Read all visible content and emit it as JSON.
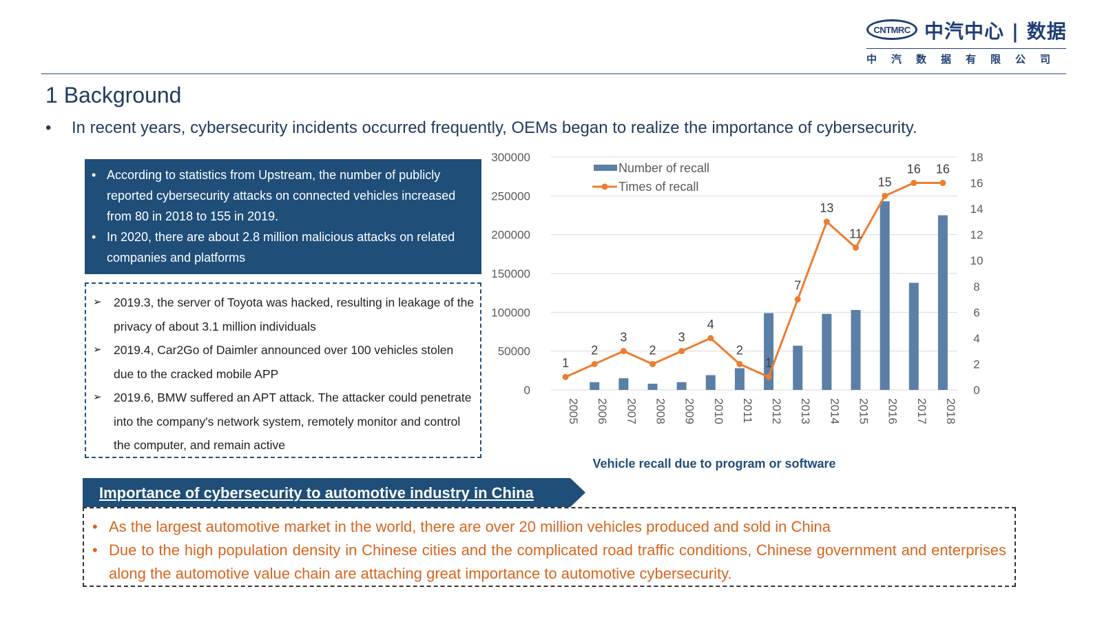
{
  "logo": {
    "badge_text": "CNTMRC",
    "name_cn": "中汽中心 | 数据",
    "subname_cn": "中汽数据有限公司"
  },
  "section_title": "1 Background",
  "intro_bullet": "In recent years, cybersecurity incidents occurred frequently, OEMs began to realize the importance of cybersecurity.",
  "stats_box": {
    "items": [
      "According to statistics from Upstream, the number of publicly reported cybersecurity attacks on connected vehicles increased from 80 in 2018 to 155 in 2019.",
      "In 2020, there are about 2.8 million malicious attacks on related companies and platforms"
    ]
  },
  "events_box": {
    "items": [
      "2019.3, the server of Toyota was hacked, resulting in leakage of the privacy of about 3.1 million individuals",
      "2019.4, Car2Go of Daimler announced over 100 vehicles stolen due to the cracked mobile APP",
      "2019.6, BMW suffered an APT attack. The attacker could penetrate into the company's network system, remotely monitor and control the computer, and remain active"
    ]
  },
  "chart_data": {
    "type": "bar",
    "title": "Vehicle recall due to program or software",
    "categories": [
      "2005",
      "2006",
      "2007",
      "2008",
      "2009",
      "2010",
      "2011",
      "2012",
      "2013",
      "2014",
      "2015",
      "2016",
      "2017",
      "2018"
    ],
    "series": [
      {
        "name": "Number of recall",
        "type": "bar",
        "axis": "left",
        "color": "#5b7fa6",
        "values": [
          0,
          10000,
          15000,
          8000,
          10000,
          19000,
          28000,
          99000,
          57000,
          98000,
          103000,
          243000,
          138000,
          225000
        ]
      },
      {
        "name": "Times of recall",
        "type": "line",
        "axis": "right",
        "color": "#ed7d31",
        "values": [
          1,
          2,
          3,
          2,
          3,
          4,
          2,
          1,
          7,
          13,
          11,
          15,
          16,
          16
        ]
      }
    ],
    "ylim_left": [
      0,
      300000
    ],
    "yticks_left": [
      0,
      50000,
      100000,
      150000,
      200000,
      250000,
      300000
    ],
    "ylim_right": [
      0,
      18
    ],
    "yticks_right": [
      0,
      2,
      4,
      6,
      8,
      10,
      12,
      14,
      16,
      18
    ],
    "grid": true,
    "legend": "top-left"
  },
  "banner": {
    "label": "Importance of cybersecurity to automotive industry in China",
    "color": "#1f4e79"
  },
  "china_box": {
    "items": [
      "As the largest automotive market in the world, there are over 20 million vehicles produced and sold in China",
      "Due to the high population density in Chinese cities and the complicated road traffic conditions, Chinese government and enterprises along the automotive value chain are attaching great importance to automotive cybersecurity."
    ]
  }
}
